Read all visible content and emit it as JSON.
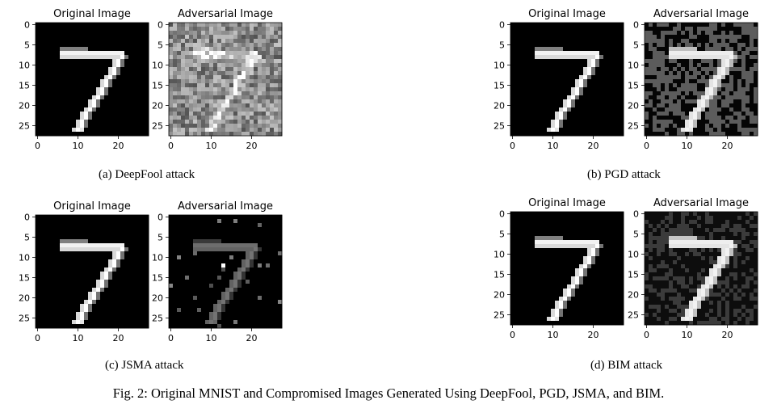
{
  "figure": {
    "caption": "Fig. 2: Original MNIST and Compromised Images Generated Using DeepFool, PGD, JSMA, and BIM."
  },
  "subfigures": [
    {
      "caption": "(a) DeepFool attack",
      "left_title": "Original Image",
      "right_title": "Adversarial Image",
      "x_ticks": [
        "0",
        "10",
        "20"
      ],
      "y_ticks": [
        "0",
        "5",
        "10",
        "15",
        "20",
        "25"
      ],
      "adversarial_style": "gray-noise"
    },
    {
      "caption": "(b) PGD attack",
      "left_title": "Original Image",
      "right_title": "Adversarial Image",
      "x_ticks": [
        "0",
        "10",
        "20"
      ],
      "y_ticks": [
        "0",
        "5",
        "10",
        "15",
        "20",
        "25"
      ],
      "adversarial_style": "quantized-blocks"
    },
    {
      "caption": "(c) JSMA attack",
      "left_title": "Original Image",
      "right_title": "Adversarial Image",
      "x_ticks": [
        "0",
        "10",
        "20"
      ],
      "y_ticks": [
        "0",
        "5",
        "10",
        "15",
        "20",
        "25"
      ],
      "adversarial_style": "sparse-pixels"
    },
    {
      "caption": "(d) BIM attack",
      "left_title": "Original Image",
      "right_title": "Adversarial Image",
      "x_ticks": [
        "0",
        "10",
        "20"
      ],
      "y_ticks": [
        "0",
        "5",
        "10",
        "15",
        "20",
        "25"
      ],
      "adversarial_style": "quantized-blocks-dark"
    }
  ]
}
